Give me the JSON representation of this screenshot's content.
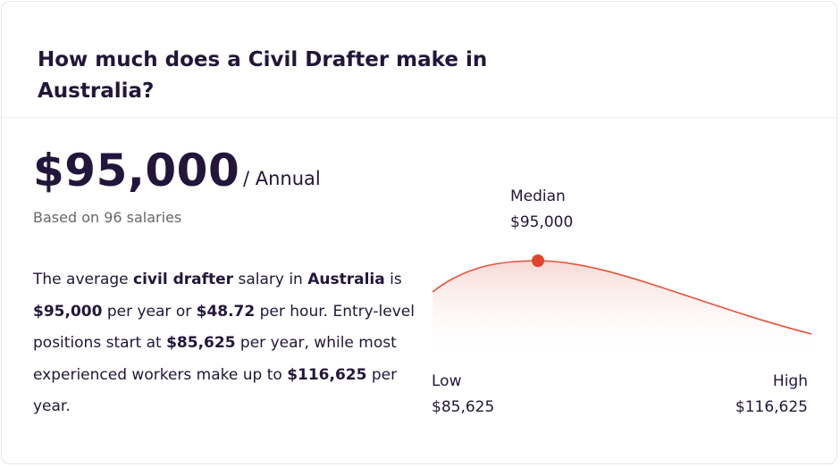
{
  "header": {
    "title": "How much does a Civil Drafter make in Australia?"
  },
  "summary": {
    "amount": "$95,000",
    "period": "/ Annual",
    "based_on": "Based on 96 salaries"
  },
  "description": [
    {
      "text": "The average ",
      "bold": false
    },
    {
      "text": "civil drafter",
      "bold": true
    },
    {
      "text": " salary in ",
      "bold": false
    },
    {
      "text": "Australia",
      "bold": true
    },
    {
      "text": " is ",
      "bold": false
    },
    {
      "text": "$95,000",
      "bold": true
    },
    {
      "text": " per year or ",
      "bold": false
    },
    {
      "text": "$48.72",
      "bold": true
    },
    {
      "text": " per hour. Entry-level positions start at ",
      "bold": false
    },
    {
      "text": "$85,625",
      "bold": true
    },
    {
      "text": " per year, while most experienced workers make up to ",
      "bold": false
    },
    {
      "text": "$116,625",
      "bold": true
    },
    {
      "text": " per year.",
      "bold": false
    }
  ],
  "distribution": {
    "median": {
      "label": "Median",
      "value": "$95,000"
    },
    "low": {
      "label": "Low",
      "value": "$85,625"
    },
    "high": {
      "label": "High",
      "value": "$116,625"
    }
  }
}
